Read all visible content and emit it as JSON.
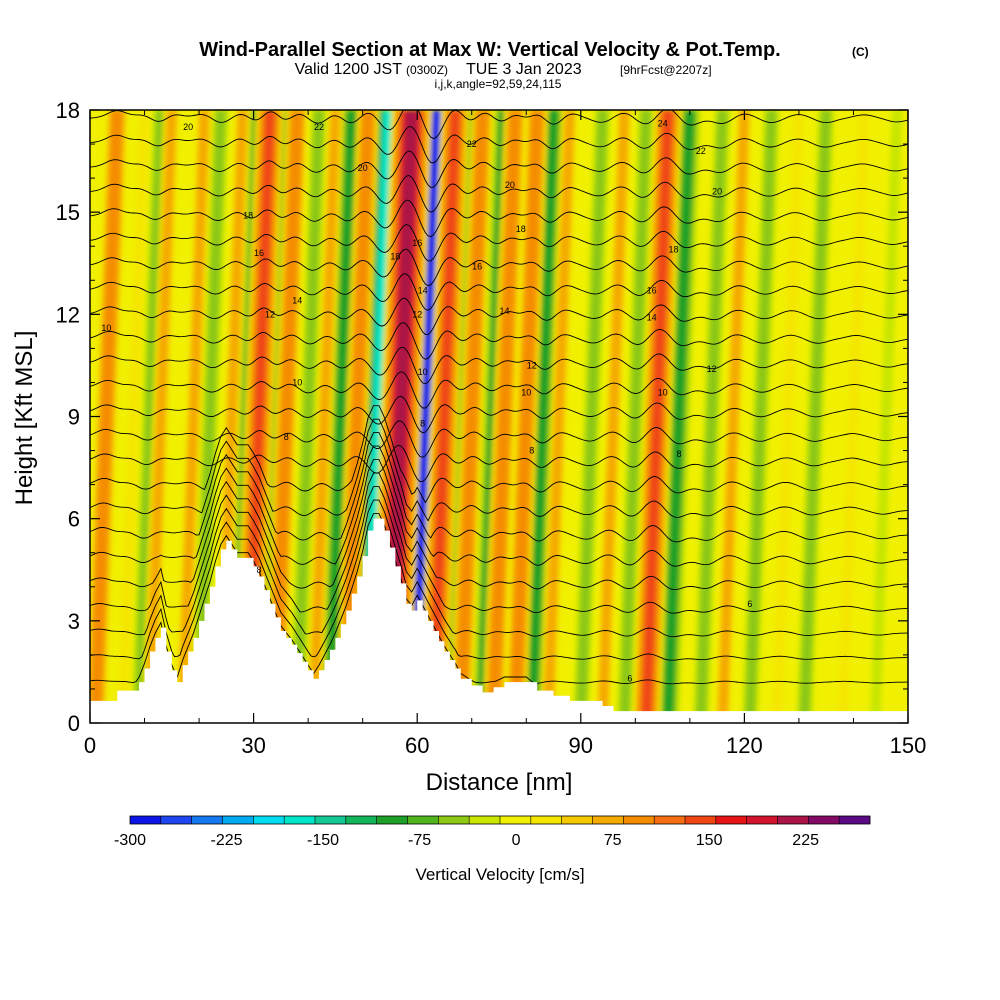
{
  "title": {
    "main": "Wind-Parallel Section at Max W: Vertical Velocity & Pot.Temp.",
    "copyright": "(C)",
    "valid_prefix": "Valid 1200 JST",
    "valid_utc": "(0300Z)",
    "valid_date": "TUE 3 Jan 2023",
    "forecast": "[9hrFcst@2207z]",
    "params": "i,j,k,angle=92,59,24,115"
  },
  "chart_data": {
    "type": "heatmap",
    "xlabel": "Distance [nm]",
    "ylabel": "Height [Kft MSL]",
    "xlim": [
      0,
      150
    ],
    "ylim": [
      0,
      18
    ],
    "x_ticks": [
      "0",
      "30",
      "60",
      "90",
      "120",
      "150"
    ],
    "y_ticks": [
      "0",
      "3",
      "6",
      "9",
      "12",
      "15",
      "18"
    ],
    "colorbar": {
      "label": "Vertical Velocity [cm/s]",
      "range": [
        -300,
        275
      ],
      "tick_labels": [
        "-300",
        "-225",
        "-150",
        "-75",
        "0",
        "75",
        "150",
        "225"
      ],
      "colors": [
        "#0a14e6",
        "#1e46f0",
        "#1478f0",
        "#00aaf0",
        "#00dcf0",
        "#00e6c8",
        "#14c896",
        "#14b45a",
        "#1ea028",
        "#50b41e",
        "#8cc814",
        "#c8e600",
        "#f0f000",
        "#f5e600",
        "#f5c800",
        "#f5aa00",
        "#f58c00",
        "#f56e14",
        "#f04614",
        "#e61414",
        "#d2142d",
        "#aa1446",
        "#820a64",
        "#5a0a82"
      ]
    },
    "updraft_bands": [
      {
        "x": 3,
        "w": 100
      },
      {
        "x": 8,
        "w": 50
      },
      {
        "x": 13,
        "w": 75
      },
      {
        "x": 19,
        "w": 60
      },
      {
        "x": 26,
        "w": 75
      },
      {
        "x": 31,
        "w": 160
      },
      {
        "x": 36,
        "w": 100
      },
      {
        "x": 43,
        "w": 75
      },
      {
        "x": 49,
        "w": 100
      },
      {
        "x": 57,
        "w": 250
      },
      {
        "x": 65,
        "w": 150
      },
      {
        "x": 70,
        "w": 125
      },
      {
        "x": 76,
        "w": 130
      },
      {
        "x": 80,
        "w": 110
      },
      {
        "x": 86,
        "w": 75
      },
      {
        "x": 96,
        "w": 75
      },
      {
        "x": 104,
        "w": 140
      },
      {
        "x": 118,
        "w": 60
      },
      {
        "x": 128,
        "w": 50
      },
      {
        "x": 140,
        "w": 45
      }
    ],
    "downdraft_bands": [
      {
        "x": 11,
        "w": -90
      },
      {
        "x": 22,
        "w": -75
      },
      {
        "x": 29,
        "w": -110
      },
      {
        "x": 34,
        "w": -100
      },
      {
        "x": 40,
        "w": -90
      },
      {
        "x": 46,
        "w": -100
      },
      {
        "x": 53,
        "w": -180
      },
      {
        "x": 61,
        "w": -300
      },
      {
        "x": 68,
        "w": -120
      },
      {
        "x": 74,
        "w": -100
      },
      {
        "x": 78,
        "w": -100
      },
      {
        "x": 83,
        "w": -120
      },
      {
        "x": 92,
        "w": -60
      },
      {
        "x": 100,
        "w": -90
      },
      {
        "x": 108,
        "w": -100
      },
      {
        "x": 114,
        "w": -75
      },
      {
        "x": 123,
        "w": -60
      },
      {
        "x": 133,
        "w": -60
      },
      {
        "x": 146,
        "w": -50
      }
    ],
    "terrain_profile": [
      [
        0,
        0.65
      ],
      [
        4,
        0.65
      ],
      [
        5,
        0.95
      ],
      [
        8,
        0.95
      ],
      [
        9,
        1.2
      ],
      [
        10,
        1.6
      ],
      [
        11,
        2.1
      ],
      [
        12,
        2.5
      ],
      [
        13,
        2.8
      ],
      [
        14,
        2.1
      ],
      [
        15,
        1.55
      ],
      [
        16,
        1.2
      ],
      [
        17,
        1.7
      ],
      [
        18,
        2.1
      ],
      [
        19,
        2.5
      ],
      [
        20,
        3.0
      ],
      [
        21,
        3.5
      ],
      [
        22,
        4.0
      ],
      [
        23,
        4.6
      ],
      [
        24,
        5.1
      ],
      [
        25,
        5.35
      ],
      [
        26,
        5.1
      ],
      [
        27,
        4.85
      ],
      [
        28,
        4.85
      ],
      [
        29,
        4.85
      ],
      [
        30,
        4.6
      ],
      [
        31,
        4.3
      ],
      [
        32,
        3.9
      ],
      [
        33,
        3.5
      ],
      [
        34,
        3.1
      ],
      [
        35,
        2.7
      ],
      [
        36,
        2.5
      ],
      [
        37,
        2.3
      ],
      [
        38,
        2.05
      ],
      [
        39,
        1.8
      ],
      [
        40,
        1.55
      ],
      [
        41,
        1.3
      ],
      [
        42,
        1.55
      ],
      [
        43,
        1.85
      ],
      [
        44,
        2.15
      ],
      [
        45,
        2.5
      ],
      [
        46,
        2.9
      ],
      [
        47,
        3.3
      ],
      [
        48,
        3.8
      ],
      [
        49,
        4.3
      ],
      [
        50,
        4.9
      ],
      [
        51,
        5.65
      ],
      [
        52,
        6.0
      ],
      [
        53,
        6.0
      ],
      [
        54,
        5.65
      ],
      [
        55,
        5.15
      ],
      [
        56,
        4.6
      ],
      [
        57,
        4.1
      ],
      [
        58,
        3.5
      ],
      [
        59,
        3.3
      ],
      [
        60,
        3.6
      ],
      [
        61,
        3.3
      ],
      [
        62,
        3.0
      ],
      [
        63,
        2.7
      ],
      [
        64,
        2.4
      ],
      [
        65,
        2.1
      ],
      [
        66,
        1.85
      ],
      [
        67,
        1.6
      ],
      [
        68,
        1.3
      ],
      [
        70,
        1.1
      ],
      [
        72,
        0.9
      ],
      [
        74,
        1.05
      ],
      [
        76,
        1.2
      ],
      [
        80,
        1.2
      ],
      [
        82,
        0.95
      ],
      [
        85,
        0.8
      ],
      [
        88,
        0.65
      ],
      [
        92,
        0.65
      ],
      [
        94,
        0.5
      ],
      [
        96,
        0.35
      ],
      [
        98,
        0.35
      ],
      [
        100,
        0.35
      ],
      [
        101,
        0.35
      ],
      [
        104,
        0.35
      ],
      [
        110,
        0.35
      ],
      [
        120,
        0.35
      ],
      [
        130,
        0.35
      ],
      [
        140,
        0.35
      ],
      [
        150,
        0.35
      ]
    ],
    "theta_contours": {
      "levels": [
        6,
        8,
        10,
        12,
        14,
        16,
        18,
        20,
        22,
        24
      ],
      "labels": [
        {
          "x": 18,
          "y": 17.5,
          "t": "20"
        },
        {
          "x": 42,
          "y": 17.5,
          "t": "22"
        },
        {
          "x": 50,
          "y": 16.3,
          "t": "20"
        },
        {
          "x": 29,
          "y": 14.9,
          "t": "18"
        },
        {
          "x": 31,
          "y": 13.8,
          "t": "16"
        },
        {
          "x": 33,
          "y": 12.0,
          "t": "12"
        },
        {
          "x": 38,
          "y": 12.4,
          "t": "14"
        },
        {
          "x": 38,
          "y": 10.0,
          "t": "10"
        },
        {
          "x": 36,
          "y": 8.4,
          "t": "8"
        },
        {
          "x": 56,
          "y": 13.7,
          "t": "18"
        },
        {
          "x": 60,
          "y": 14.1,
          "t": "16"
        },
        {
          "x": 61,
          "y": 12.7,
          "t": "14"
        },
        {
          "x": 60,
          "y": 12.0,
          "t": "12"
        },
        {
          "x": 61,
          "y": 10.3,
          "t": "10"
        },
        {
          "x": 61,
          "y": 8.8,
          "t": "8"
        },
        {
          "x": 70,
          "y": 17.0,
          "t": "22"
        },
        {
          "x": 77,
          "y": 15.8,
          "t": "20"
        },
        {
          "x": 79,
          "y": 14.5,
          "t": "18"
        },
        {
          "x": 71,
          "y": 13.4,
          "t": "16"
        },
        {
          "x": 76,
          "y": 12.1,
          "t": "14"
        },
        {
          "x": 81,
          "y": 10.5,
          "t": "12"
        },
        {
          "x": 80,
          "y": 9.7,
          "t": "10"
        },
        {
          "x": 81,
          "y": 8.0,
          "t": "8"
        },
        {
          "x": 105,
          "y": 17.6,
          "t": "24"
        },
        {
          "x": 112,
          "y": 16.8,
          "t": "22"
        },
        {
          "x": 115,
          "y": 15.6,
          "t": "20"
        },
        {
          "x": 107,
          "y": 13.9,
          "t": "18"
        },
        {
          "x": 103,
          "y": 12.7,
          "t": "16"
        },
        {
          "x": 103,
          "y": 11.9,
          "t": "14"
        },
        {
          "x": 114,
          "y": 10.4,
          "t": "12"
        },
        {
          "x": 105,
          "y": 9.7,
          "t": "10"
        },
        {
          "x": 108,
          "y": 7.9,
          "t": "8"
        },
        {
          "x": 3,
          "y": 11.6,
          "t": "10"
        },
        {
          "x": 31,
          "y": 4.5,
          "t": "8"
        },
        {
          "x": 99,
          "y": 1.3,
          "t": "6"
        },
        {
          "x": 121,
          "y": 3.5,
          "t": "6"
        }
      ]
    }
  }
}
